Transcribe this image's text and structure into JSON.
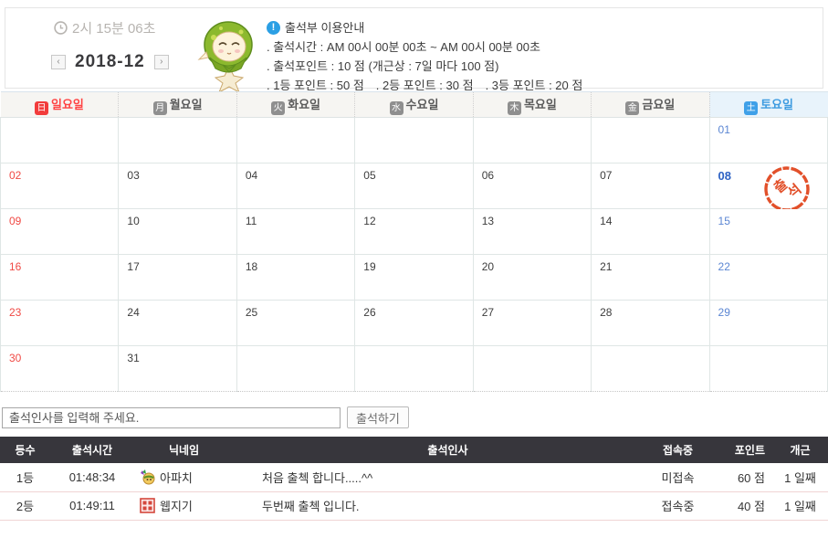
{
  "header": {
    "server_time": "2시 15분 06초",
    "month": "2018-12",
    "prev_arrow": "‹",
    "next_arrow": "›",
    "notice": {
      "info_icon": "!",
      "title": "출석부 이용안내",
      "lines": [
        [
          ". 출석시간 : AM 00시 00분 00초 ~ AM 00시 00분 00초"
        ],
        [
          ". 출석포인트 : 10 점 (개근상 : 7일 마다 100 점)"
        ],
        [
          ". 1등 포인트 : 50 점",
          ". 2등 포인트 : 30 점",
          ". 3등 포인트 : 20 점"
        ]
      ]
    }
  },
  "calendar": {
    "day_headers": [
      {
        "hanja": "日",
        "label": "일요일",
        "type": "sun",
        "icon": "sunday-icon"
      },
      {
        "hanja": "月",
        "label": "월요일",
        "type": "weekday",
        "icon": "monday-icon"
      },
      {
        "hanja": "火",
        "label": "화요일",
        "type": "weekday",
        "icon": "tuesday-icon"
      },
      {
        "hanja": "水",
        "label": "수요일",
        "type": "weekday",
        "icon": "wednesday-icon"
      },
      {
        "hanja": "木",
        "label": "목요일",
        "type": "weekday",
        "icon": "thursday-icon"
      },
      {
        "hanja": "金",
        "label": "금요일",
        "type": "weekday",
        "icon": "friday-icon"
      },
      {
        "hanja": "土",
        "label": "토요일",
        "type": "sat",
        "icon": "saturday-icon"
      }
    ],
    "weeks": [
      [
        "",
        "",
        "",
        "",
        "",
        "",
        "01"
      ],
      [
        "02",
        "03",
        "04",
        "05",
        "06",
        "07",
        "08"
      ],
      [
        "09",
        "10",
        "11",
        "12",
        "13",
        "14",
        "15"
      ],
      [
        "16",
        "17",
        "18",
        "19",
        "20",
        "21",
        "22"
      ],
      [
        "23",
        "24",
        "25",
        "26",
        "27",
        "28",
        "29"
      ],
      [
        "30",
        "31",
        "",
        "",
        "",
        "",
        ""
      ]
    ],
    "today": "08",
    "stamp_date": "08",
    "stamp_text": "출석"
  },
  "check_in": {
    "placeholder": "출석인사를 입력해 주세요.",
    "button_label": "출석하기"
  },
  "attendance_table": {
    "headers": [
      "등수",
      "출석시간",
      "닉네임",
      "출석인사",
      "접속중",
      "포인트",
      "개근"
    ],
    "rows": [
      {
        "rank": "1등",
        "time": "01:48:34",
        "avatar": "feather-character-avatar",
        "nickname": "아파치",
        "greeting": "처음 출첵 합니다.....^^",
        "status": "미접속",
        "points": "60 점",
        "streak": "1 일째"
      },
      {
        "rank": "2등",
        "time": "01:49:11",
        "avatar": "red-seal-avatar",
        "nickname": "웹지기",
        "greeting": "두번째 출첵 입니다.",
        "status": "접속중",
        "points": "40 점",
        "streak": "1 일째"
      }
    ]
  },
  "colors": {
    "sunday_red": "#f04a45",
    "saturday_blue": "#5b86d3",
    "today_blue": "#2d62c4",
    "stamp_red": "#e2502a",
    "table_header_bg": "#37363c",
    "info_blue": "#2b9fe4"
  }
}
